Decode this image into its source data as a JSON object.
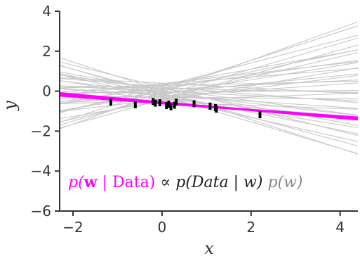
{
  "chart_data": {
    "type": "line",
    "title": "",
    "xlabel": "x",
    "ylabel": "y",
    "xlim": [
      -2.3,
      4.4
    ],
    "ylim": [
      -6,
      4
    ],
    "xticks": [
      -2,
      0,
      2,
      4
    ],
    "yticks": [
      -6,
      -4,
      -2,
      0,
      2,
      4
    ],
    "grid": false,
    "colors": {
      "prior_lines": "#c8c8c8",
      "posterior_lines": "#ff00ff",
      "data_points": "#000000",
      "axes": "#333333"
    },
    "prior_samples": {
      "description_visible": "gray lines",
      "lines": [
        {
          "intercept": -0.05,
          "slope": 0.8
        },
        {
          "intercept": 0.1,
          "slope": 0.72
        },
        {
          "intercept": -0.2,
          "slope": 0.65
        },
        {
          "intercept": 0.25,
          "slope": 0.58
        },
        {
          "intercept": -0.35,
          "slope": 0.52
        },
        {
          "intercept": 0.05,
          "slope": 0.46
        },
        {
          "intercept": 0.3,
          "slope": 0.4
        },
        {
          "intercept": -0.15,
          "slope": 0.36
        },
        {
          "intercept": 0.18,
          "slope": 0.31
        },
        {
          "intercept": -0.4,
          "slope": 0.27
        },
        {
          "intercept": -0.1,
          "slope": 0.22
        },
        {
          "intercept": 0.35,
          "slope": 0.18
        },
        {
          "intercept": -0.25,
          "slope": 0.15
        },
        {
          "intercept": 0.08,
          "slope": 0.11
        },
        {
          "intercept": -0.45,
          "slope": 0.08
        },
        {
          "intercept": 0.28,
          "slope": 0.05
        },
        {
          "intercept": -0.05,
          "slope": 0.02
        },
        {
          "intercept": -0.3,
          "slope": -0.02
        },
        {
          "intercept": 0.15,
          "slope": -0.05
        },
        {
          "intercept": -0.55,
          "slope": -0.08
        },
        {
          "intercept": 0.0,
          "slope": -0.11
        },
        {
          "intercept": -0.2,
          "slope": -0.15
        },
        {
          "intercept": 0.22,
          "slope": -0.18
        },
        {
          "intercept": -0.38,
          "slope": -0.22
        },
        {
          "intercept": -0.08,
          "slope": -0.26
        },
        {
          "intercept": 0.12,
          "slope": -0.3
        },
        {
          "intercept": -0.28,
          "slope": -0.35
        },
        {
          "intercept": 0.05,
          "slope": -0.4
        },
        {
          "intercept": -0.15,
          "slope": -0.45
        },
        {
          "intercept": -0.32,
          "slope": -0.5
        },
        {
          "intercept": 0.2,
          "slope": -0.55
        },
        {
          "intercept": -0.1,
          "slope": -0.6
        },
        {
          "intercept": -0.22,
          "slope": -0.66
        },
        {
          "intercept": 0.02,
          "slope": -0.72
        },
        {
          "intercept": -0.42,
          "slope": 0.62
        },
        {
          "intercept": 0.38,
          "slope": 0.25
        },
        {
          "intercept": -0.5,
          "slope": 0.38
        },
        {
          "intercept": 0.4,
          "slope": -0.12
        }
      ]
    },
    "posterior_samples": {
      "lines": [
        {
          "intercept": -0.57,
          "slope": -0.18
        },
        {
          "intercept": -0.6,
          "slope": -0.16
        },
        {
          "intercept": -0.55,
          "slope": -0.2
        },
        {
          "intercept": -0.62,
          "slope": -0.17
        },
        {
          "intercept": -0.58,
          "slope": -0.19
        },
        {
          "intercept": -0.59,
          "slope": -0.175
        },
        {
          "intercept": -0.56,
          "slope": -0.185
        },
        {
          "intercept": -0.61,
          "slope": -0.165
        }
      ]
    },
    "data_points": [
      {
        "x": -1.15,
        "y": -0.55
      },
      {
        "x": -0.6,
        "y": -0.68
      },
      {
        "x": -0.2,
        "y": -0.52
      },
      {
        "x": -0.15,
        "y": -0.6
      },
      {
        "x": -0.05,
        "y": -0.58
      },
      {
        "x": 0.1,
        "y": -0.72
      },
      {
        "x": 0.15,
        "y": -0.65
      },
      {
        "x": 0.2,
        "y": -0.78
      },
      {
        "x": 0.28,
        "y": -0.7
      },
      {
        "x": 0.32,
        "y": -0.55
      },
      {
        "x": 0.72,
        "y": -0.63
      },
      {
        "x": 1.08,
        "y": -0.75
      },
      {
        "x": 1.2,
        "y": -0.82
      },
      {
        "x": 1.22,
        "y": -0.9
      },
      {
        "x": 2.2,
        "y": -1.18
      }
    ],
    "annotation": {
      "p_text": "p(",
      "w_text": "w",
      "bar_text": " | ",
      "data_text": "Data",
      "close_text": ")",
      "propto_text": " ∝ ",
      "likelihood_text": "p(Data | w)",
      "prior_text": " p(w)"
    }
  }
}
